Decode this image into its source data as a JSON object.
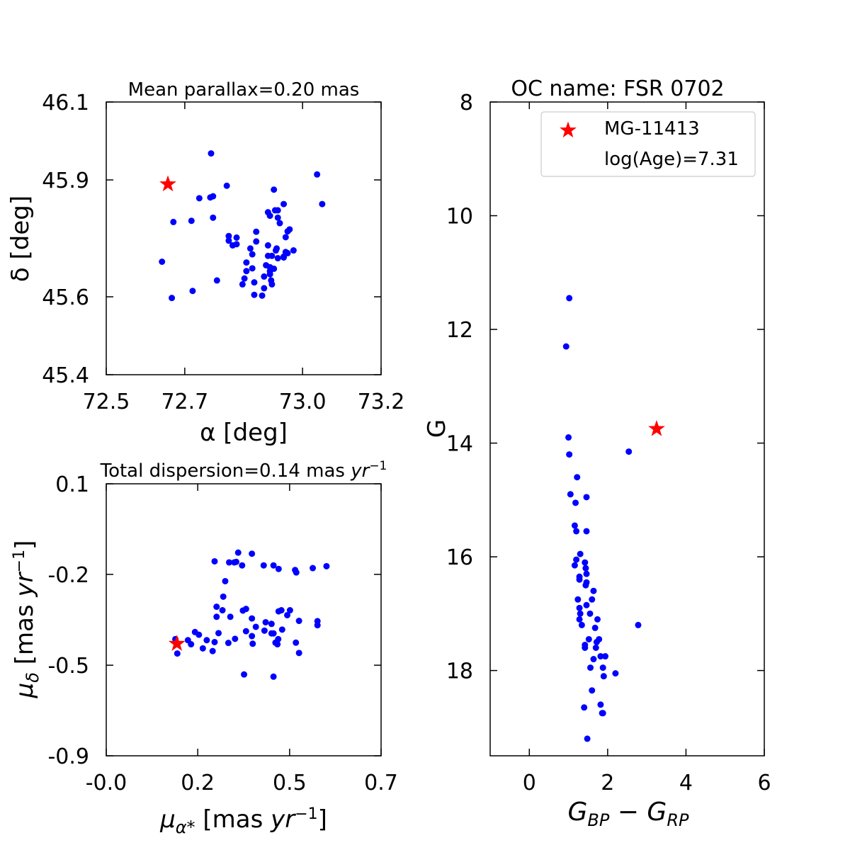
{
  "chart_data": [
    {
      "id": "radec",
      "type": "scatter",
      "title": "Mean parallax=0.20 mas",
      "xlabel": "α [deg]",
      "ylabel": "δ [deg]",
      "xlim": [
        72.5,
        73.2
      ],
      "ylim": [
        45.4,
        46.1
      ],
      "xticks": [
        72.5,
        72.7,
        73.0,
        73.2
      ],
      "xtick_labels": [
        "72.5",
        "72.7",
        "73.0",
        "73.2"
      ],
      "yticks": [
        45.4,
        45.6,
        45.9,
        46.1
      ],
      "ytick_labels": [
        "45.4",
        "45.6",
        "45.9",
        "46.1"
      ],
      "grid": false,
      "members": {
        "name": "members",
        "color": "#0000ff",
        "x": [
          72.767,
          72.807,
          72.772,
          72.765,
          72.737,
          72.772,
          72.717,
          72.671,
          72.642,
          72.812,
          72.812,
          72.832,
          72.832,
          72.822,
          72.882,
          72.867,
          72.872,
          72.857,
          72.872,
          72.852,
          72.847,
          72.882,
          72.912,
          72.912,
          72.907,
          72.917,
          72.917,
          72.917,
          72.92,
          72.922,
          72.902,
          72.902,
          72.897,
          72.922,
          72.937,
          72.927,
          72.932,
          72.934,
          72.952,
          72.952,
          72.957,
          72.962,
          72.942,
          72.937,
          72.912,
          72.917,
          72.93,
          72.937,
          72.952,
          72.927,
          72.967,
          72.957,
          72.977,
          72.962,
          72.782,
          72.857,
          72.877,
          72.877,
          72.72,
          73.037,
          73.05,
          72.667
        ],
        "y": [
          45.968,
          45.885,
          45.858,
          45.855,
          45.853,
          45.803,
          45.795,
          45.792,
          45.69,
          45.744,
          45.756,
          45.735,
          45.752,
          45.732,
          45.767,
          45.724,
          45.709,
          45.688,
          45.673,
          45.647,
          45.632,
          45.742,
          45.732,
          45.705,
          45.681,
          45.676,
          45.666,
          45.658,
          45.642,
          45.632,
          45.652,
          45.622,
          45.603,
          45.705,
          45.699,
          45.672,
          45.719,
          45.724,
          45.701,
          45.703,
          45.753,
          45.768,
          45.789,
          45.803,
          45.817,
          45.808,
          45.822,
          45.822,
          45.838,
          45.875,
          45.773,
          45.715,
          45.719,
          45.712,
          45.642,
          45.666,
          45.637,
          45.605,
          45.615,
          45.914,
          45.838,
          45.597
        ]
      },
      "highlight": {
        "name": "MG-11413",
        "color": "#ff0000",
        "x": 72.657,
        "y": 45.889
      }
    },
    {
      "id": "pm",
      "type": "scatter",
      "title": "Total dispersion=0.14 mas yr−1",
      "xlabel": "μα* [mas yr−1]",
      "ylabel": "μδ [mas yr−1]",
      "xlim": [
        -0.0,
        0.7
      ],
      "ylim": [
        -0.9,
        0.1
      ],
      "xticks": [
        0.0,
        0.233,
        0.467,
        0.7
      ],
      "xtick_labels": [
        "-0.0",
        "0.2",
        "0.5",
        "0.7"
      ],
      "yticks": [
        -0.9,
        -0.567,
        -0.233,
        0.1
      ],
      "ytick_labels": [
        "-0.9",
        "-0.5",
        "-0.2",
        "0.1"
      ],
      "grid": false,
      "members": {
        "name": "members",
        "color": "#0000ff",
        "x": [
          0.336,
          0.371,
          0.276,
          0.313,
          0.326,
          0.331,
          0.346,
          0.426,
          0.439,
          0.401,
          0.481,
          0.484,
          0.526,
          0.561,
          0.303,
          0.298,
          0.281,
          0.296,
          0.281,
          0.316,
          0.356,
          0.348,
          0.371,
          0.381,
          0.406,
          0.421,
          0.446,
          0.439,
          0.468,
          0.448,
          0.538,
          0.538,
          0.461,
          0.403,
          0.356,
          0.421,
          0.491,
          0.483,
          0.438,
          0.431,
          0.426,
          0.436,
          0.371,
          0.328,
          0.311,
          0.271,
          0.246,
          0.236,
          0.226,
          0.208,
          0.216,
          0.256,
          0.276,
          0.286,
          0.351,
          0.426,
          0.373,
          0.491,
          0.181,
          0.176
        ],
        "y": [
          -0.153,
          -0.157,
          -0.185,
          -0.189,
          -0.189,
          -0.187,
          -0.2,
          -0.2,
          -0.213,
          -0.2,
          -0.217,
          -0.226,
          -0.21,
          -0.203,
          -0.258,
          -0.315,
          -0.352,
          -0.365,
          -0.389,
          -0.389,
          -0.36,
          -0.366,
          -0.395,
          -0.426,
          -0.409,
          -0.415,
          -0.365,
          -0.369,
          -0.365,
          -0.436,
          -0.405,
          -0.42,
          -0.383,
          -0.44,
          -0.442,
          -0.45,
          -0.404,
          -0.484,
          -0.471,
          -0.484,
          -0.45,
          -0.49,
          -0.46,
          -0.47,
          -0.485,
          -0.515,
          -0.505,
          -0.455,
          -0.445,
          -0.475,
          -0.49,
          -0.475,
          -0.482,
          -0.449,
          -0.601,
          -0.609,
          -0.488,
          -0.522,
          -0.524,
          -0.471
        ]
      },
      "highlight": {
        "name": "MG-11413",
        "color": "#ff0000",
        "x": 0.18,
        "y": -0.488
      }
    },
    {
      "id": "cmd",
      "type": "scatter",
      "title": "OC name: FSR 0702",
      "xlabel": "GBP − GRP",
      "ylabel": "G",
      "xlim": [
        -1,
        6
      ],
      "ylim": [
        19.5,
        8
      ],
      "y_inverted": true,
      "xticks": [
        0,
        2,
        4,
        6
      ],
      "xtick_labels": [
        "0",
        "2",
        "4",
        "6"
      ],
      "yticks": [
        8,
        10,
        12,
        14,
        16,
        18
      ],
      "ytick_labels": [
        "8",
        "10",
        "12",
        "14",
        "16",
        "18"
      ],
      "grid": false,
      "members": {
        "name": "members",
        "color": "#0000ff",
        "x": [
          1.02,
          0.94,
          1.0,
          1.02,
          1.22,
          1.05,
          1.18,
          1.46,
          1.16,
          1.2,
          1.46,
          1.3,
          1.2,
          1.16,
          1.42,
          1.28,
          1.44,
          1.46,
          1.28,
          1.46,
          1.44,
          1.24,
          1.64,
          1.6,
          1.28,
          1.46,
          1.3,
          1.55,
          1.28,
          1.74,
          1.34,
          1.68,
          1.42,
          1.52,
          1.78,
          1.72,
          1.7,
          1.42,
          1.82,
          1.64,
          1.94,
          1.88,
          1.56,
          2.2,
          1.9,
          1.6,
          1.4,
          1.82,
          1.86,
          1.88,
          1.48,
          2.54,
          2.78
        ],
        "y": [
          11.45,
          12.3,
          13.9,
          14.2,
          14.6,
          14.9,
          15.05,
          14.95,
          15.45,
          15.55,
          15.55,
          15.95,
          16.05,
          16.15,
          16.1,
          16.35,
          16.2,
          16.3,
          16.4,
          16.45,
          16.5,
          16.75,
          16.6,
          16.75,
          16.9,
          16.85,
          17.0,
          17.0,
          17.1,
          17.1,
          17.2,
          17.25,
          17.55,
          17.45,
          17.45,
          17.5,
          17.6,
          17.6,
          17.75,
          17.8,
          17.75,
          17.95,
          17.95,
          18.05,
          18.1,
          18.35,
          18.65,
          18.6,
          18.75,
          18.75,
          19.2,
          14.15,
          17.2
        ]
      },
      "highlight": {
        "name": "MG-11413",
        "color": "#ff0000",
        "x": 3.25,
        "y": 13.75
      },
      "legend": {
        "position": "top-right",
        "entries": [
          "MG-11413",
          "log(Age)=7.31"
        ]
      }
    }
  ]
}
